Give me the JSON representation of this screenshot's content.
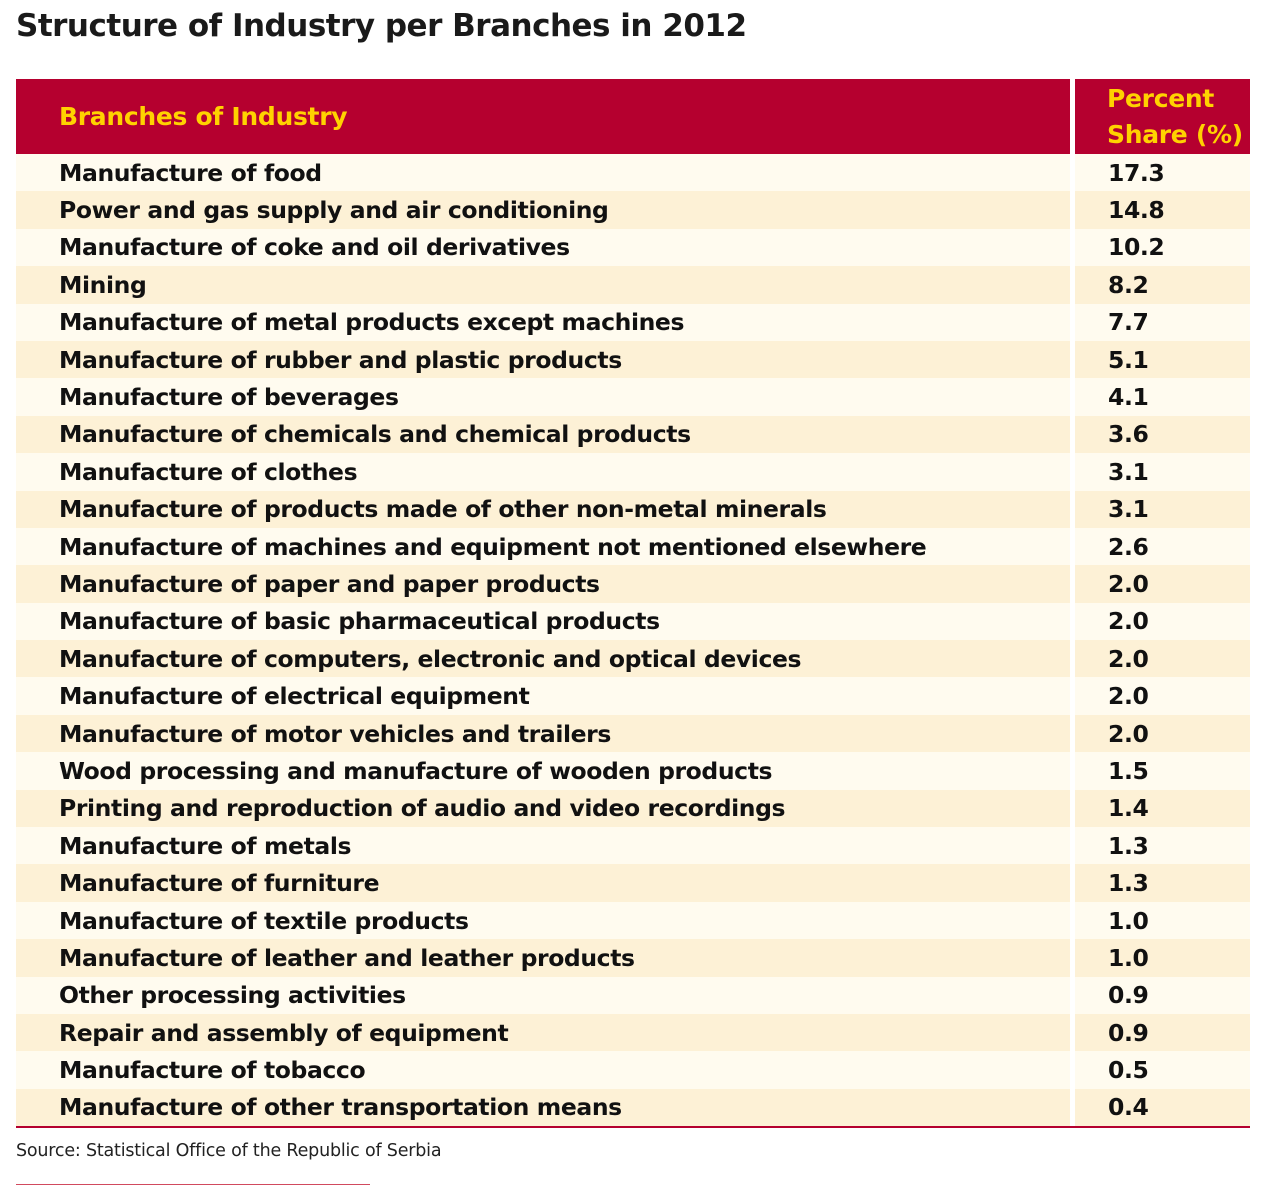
{
  "title": "Structure of Industry per Branches in 2012",
  "table": {
    "header": {
      "branch": "Branches of Industry",
      "share_line1": "Percent",
      "share_line2": "Share (%)"
    },
    "rows": [
      {
        "branch": "Manufacture of food",
        "share": "17.3"
      },
      {
        "branch": "Power and gas supply and air conditioning",
        "share": "14.8"
      },
      {
        "branch": "Manufacture of coke and oil derivatives",
        "share": "10.2"
      },
      {
        "branch": "Mining",
        "share": "8.2"
      },
      {
        "branch": "Manufacture of metal products except machines",
        "share": "7.7"
      },
      {
        "branch": "Manufacture of rubber and plastic products",
        "share": "5.1"
      },
      {
        "branch": "Manufacture of beverages",
        "share": "4.1"
      },
      {
        "branch": "Manufacture of chemicals and chemical products",
        "share": "3.6"
      },
      {
        "branch": "Manufacture of clothes",
        "share": "3.1"
      },
      {
        "branch": "Manufacture of products made of other non-metal minerals",
        "share": "3.1"
      },
      {
        "branch": "Manufacture of machines and equipment not mentioned elsewhere",
        "share": "2.6"
      },
      {
        "branch": "Manufacture of paper and paper products",
        "share": "2.0"
      },
      {
        "branch": "Manufacture of basic pharmaceutical products",
        "share": "2.0"
      },
      {
        "branch": "Manufacture of computers, electronic and optical devices",
        "share": "2.0"
      },
      {
        "branch": "Manufacture of electrical equipment",
        "share": "2.0"
      },
      {
        "branch": "Manufacture of motor vehicles and trailers",
        "share": "2.0"
      },
      {
        "branch": "Wood processing and manufacture of wooden products",
        "share": "1.5"
      },
      {
        "branch": "Printing and reproduction of audio and video recordings",
        "share": "1.4"
      },
      {
        "branch": "Manufacture of metals",
        "share": "1.3"
      },
      {
        "branch": "Manufacture of furniture",
        "share": "1.3"
      },
      {
        "branch": "Manufacture of textile products",
        "share": "1.0"
      },
      {
        "branch": "Manufacture of leather and leather products",
        "share": "1.0"
      },
      {
        "branch": "Other processing activities",
        "share": "0.9"
      },
      {
        "branch": "Repair and assembly of equipment",
        "share": "0.9"
      },
      {
        "branch": "Manufacture of tobacco",
        "share": "0.5"
      },
      {
        "branch": "Manufacture of other transportation means",
        "share": "0.4"
      }
    ]
  },
  "source": "Source: Statistical Office of the Republic of Serbia",
  "colors": {
    "header_bg": "#b5002f",
    "header_text": "#ffd200",
    "row_light": "#fffbef",
    "row_dark": "#fdf1d6"
  }
}
